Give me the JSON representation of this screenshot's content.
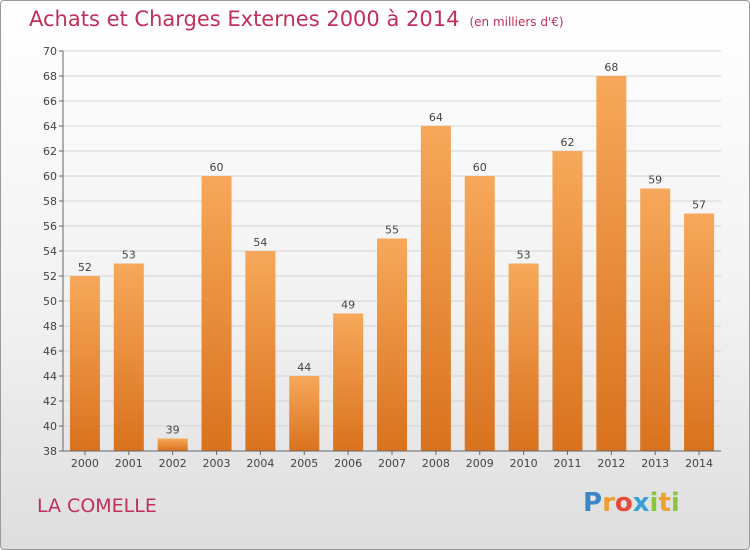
{
  "title": "Achats et Charges Externes 2000 à 2014",
  "unit": "(en milliers d'€)",
  "commune": "LA COMELLE",
  "logo": {
    "text": "Proxiti"
  },
  "colors": {
    "bar_top": "#f7a85a",
    "bar_bottom": "#d9721e",
    "title": "#c0305a"
  },
  "chart_data": {
    "type": "bar",
    "categories": [
      "2000",
      "2001",
      "2002",
      "2003",
      "2004",
      "2005",
      "2006",
      "2007",
      "2008",
      "2009",
      "2010",
      "2011",
      "2012",
      "2013",
      "2014"
    ],
    "values": [
      52,
      53,
      39,
      60,
      54,
      44,
      49,
      55,
      64,
      60,
      53,
      62,
      68,
      59,
      57
    ],
    "ylim": [
      38,
      70
    ],
    "yticks": [
      38,
      40,
      42,
      44,
      46,
      48,
      50,
      52,
      54,
      56,
      58,
      60,
      62,
      64,
      66,
      68,
      70
    ],
    "grid": true,
    "legend": "none"
  }
}
